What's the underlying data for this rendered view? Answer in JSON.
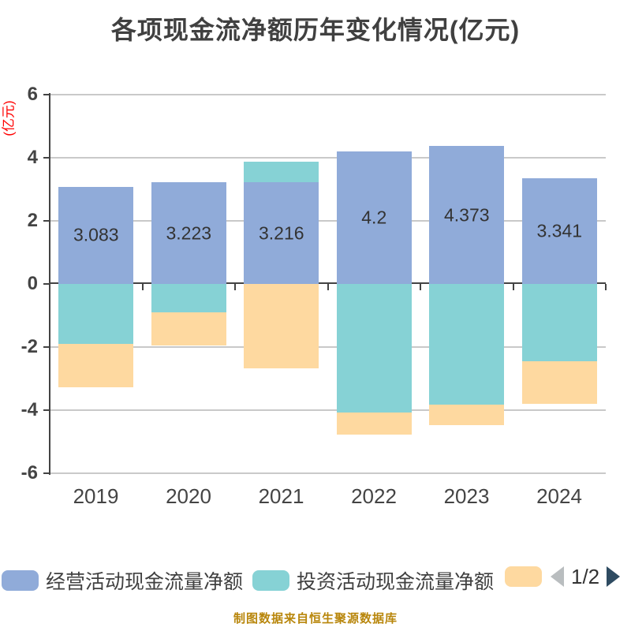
{
  "title": "各项现金流净额历年变化情况(亿元)",
  "caption": "制图数据来自恒生聚源数据库",
  "legend": {
    "page": "1/2",
    "prev_enabled": false,
    "next_enabled": true
  },
  "chart_data": {
    "type": "bar",
    "stacked": true,
    "title": "各项现金流净额历年变化情况(亿元)",
    "y_axis_name": "(亿元)",
    "categories": [
      "2019",
      "2020",
      "2021",
      "2022",
      "2023",
      "2024"
    ],
    "y_ticks": [
      6,
      4,
      2,
      0,
      -2,
      -4,
      -6
    ],
    "ylim": [
      -6,
      6
    ],
    "grid": true,
    "legend_position": "bottom",
    "series": [
      {
        "name": "经营活动现金流量净额",
        "color": "#90ABD9",
        "values": [
          3.083,
          3.223,
          3.216,
          4.2,
          4.373,
          3.341
        ],
        "labels": [
          "3.083",
          "3.223",
          "3.216",
          "4.2",
          "4.373",
          "3.341"
        ]
      },
      {
        "name": "投资活动现金流量净额",
        "color": "#86D2D5",
        "values": [
          -1.9,
          -0.9,
          0.65,
          -4.08,
          -3.83,
          -2.46
        ]
      },
      {
        "name": "",
        "color": "#FED9A0",
        "values": [
          -1.38,
          -1.06,
          -2.67,
          -0.7,
          -0.65,
          -1.33
        ]
      }
    ]
  },
  "colors": {
    "background": "#ffffff",
    "title": "#404040",
    "y_axis_name": "#ff0000",
    "axis_line": "#434343",
    "axis_label": "#444444",
    "gridline": "#c9c9c9",
    "data_label": "#333333",
    "legend_text": "#404040",
    "pagination_prev": "#b9bdbf",
    "pagination_next": "#2e4b61",
    "pagination_text": "#333333",
    "caption": "#b8860b"
  }
}
